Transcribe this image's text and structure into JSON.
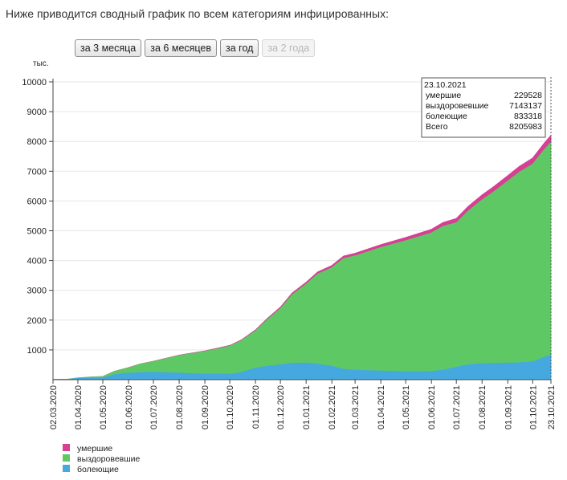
{
  "intro": "Ниже приводится сводный график по всем категориям инфицированных:",
  "buttons": [
    {
      "label": "за 3 месяца",
      "enabled": true
    },
    {
      "label": "за 6 месяцев",
      "enabled": true
    },
    {
      "label": "за год",
      "enabled": true
    },
    {
      "label": "за 2 года",
      "enabled": false
    }
  ],
  "colors": {
    "deaths": "#d63f93",
    "recovered": "#5ec964",
    "active": "#45a8df",
    "grid": "#e6e6e6"
  },
  "chart_data": {
    "type": "area",
    "stacked": true,
    "y_unit": "тыс.",
    "ylim": [
      0,
      10000
    ],
    "yticks": [
      1000,
      2000,
      3000,
      4000,
      5000,
      6000,
      7000,
      8000,
      9000,
      10000
    ],
    "xlim": [
      "2020-03-02",
      "2021-10-23"
    ],
    "x_ticks": [
      "02.03.2020",
      "01.04.2020",
      "01.05.2020",
      "01.06.2020",
      "01.07.2020",
      "01.08.2020",
      "01.09.2020",
      "01.10.2020",
      "01.11.2020",
      "01.12.2020",
      "01.01.2021",
      "01.02.2021",
      "01.03.2021",
      "01.04.2021",
      "01.05.2021",
      "01.06.2021",
      "01.07.2021",
      "01.08.2021",
      "01.09.2021",
      "01.10.2021",
      "23.10.2021"
    ],
    "x": [
      "2020-03-02",
      "2020-03-20",
      "2020-04-01",
      "2020-04-15",
      "2020-05-01",
      "2020-05-15",
      "2020-06-01",
      "2020-06-15",
      "2020-07-01",
      "2020-08-01",
      "2020-09-01",
      "2020-10-01",
      "2020-10-15",
      "2020-11-01",
      "2020-11-15",
      "2020-12-01",
      "2020-12-15",
      "2021-01-01",
      "2021-01-15",
      "2021-02-01",
      "2021-02-15",
      "2021-03-01",
      "2021-04-01",
      "2021-05-01",
      "2021-06-01",
      "2021-06-15",
      "2021-07-01",
      "2021-07-15",
      "2021-08-01",
      "2021-08-15",
      "2021-09-01",
      "2021-09-15",
      "2021-10-01",
      "2021-10-15",
      "2021-10-23"
    ],
    "series": [
      {
        "name": "болеющие",
        "values": [
          5,
          10,
          50,
          60,
          65,
          170,
          220,
          240,
          250,
          220,
          190,
          190,
          240,
          390,
          450,
          500,
          550,
          560,
          520,
          450,
          350,
          320,
          290,
          270,
          280,
          320,
          420,
          500,
          540,
          550,
          560,
          570,
          600,
          750,
          833
        ]
      },
      {
        "name": "выздоровевшие",
        "values": [
          0,
          5,
          10,
          25,
          40,
          110,
          180,
          280,
          360,
          590,
          760,
          940,
          1070,
          1250,
          1560,
          1890,
          2300,
          2650,
          3030,
          3310,
          3720,
          3840,
          4150,
          4400,
          4650,
          4830,
          4850,
          5160,
          5500,
          5760,
          6110,
          6400,
          6640,
          6980,
          7143
        ]
      },
      {
        "name": "умершие",
        "values": [
          0,
          0,
          0,
          1,
          2,
          4,
          6,
          8,
          10,
          14,
          18,
          22,
          26,
          32,
          40,
          48,
          56,
          62,
          70,
          75,
          80,
          86,
          95,
          106,
          120,
          130,
          145,
          155,
          165,
          175,
          185,
          195,
          205,
          220,
          230
        ]
      }
    ],
    "tooltip": {
      "date": "23.10.2021",
      "rows": [
        {
          "label": "умершие",
          "value": "229528"
        },
        {
          "label": "выздоровевшие",
          "value": "7143137"
        },
        {
          "label": "болеющие",
          "value": "833318"
        },
        {
          "label": "Всего",
          "value": "8205983"
        }
      ]
    },
    "legend": [
      "умершие",
      "выздоровевшие",
      "болеющие"
    ]
  }
}
